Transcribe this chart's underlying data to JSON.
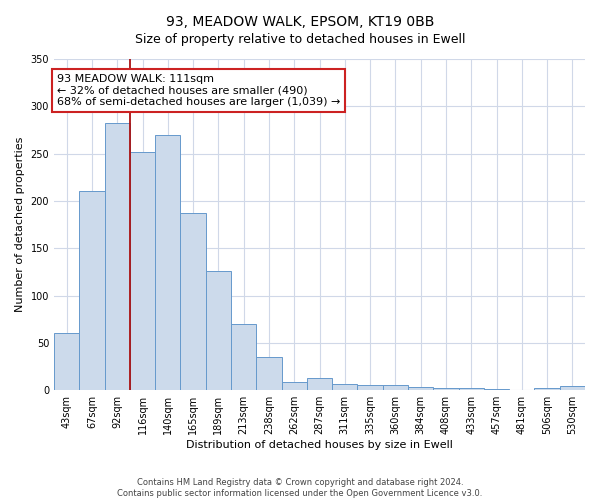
{
  "title": "93, MEADOW WALK, EPSOM, KT19 0BB",
  "subtitle": "Size of property relative to detached houses in Ewell",
  "xlabel": "Distribution of detached houses by size in Ewell",
  "ylabel": "Number of detached properties",
  "bar_labels": [
    "43sqm",
    "67sqm",
    "92sqm",
    "116sqm",
    "140sqm",
    "165sqm",
    "189sqm",
    "213sqm",
    "238sqm",
    "262sqm",
    "287sqm",
    "311sqm",
    "335sqm",
    "360sqm",
    "384sqm",
    "408sqm",
    "433sqm",
    "457sqm",
    "481sqm",
    "506sqm",
    "530sqm"
  ],
  "bar_values": [
    60,
    210,
    282,
    252,
    270,
    187,
    126,
    70,
    35,
    9,
    13,
    7,
    6,
    5,
    3,
    2,
    2,
    1,
    0,
    2,
    4
  ],
  "bar_color": "#ccdaeb",
  "bar_edge_color": "#6699cc",
  "vline_x_index": 3,
  "vline_color": "#aa1111",
  "annotation_title": "93 MEADOW WALK: 111sqm",
  "annotation_line1": "← 32% of detached houses are smaller (490)",
  "annotation_line2": "68% of semi-detached houses are larger (1,039) →",
  "annotation_box_facecolor": "#ffffff",
  "annotation_box_edgecolor": "#cc2222",
  "ylim": [
    0,
    350
  ],
  "yticks": [
    0,
    50,
    100,
    150,
    200,
    250,
    300,
    350
  ],
  "footer1": "Contains HM Land Registry data © Crown copyright and database right 2024.",
  "footer2": "Contains public sector information licensed under the Open Government Licence v3.0.",
  "fig_facecolor": "#ffffff",
  "plot_facecolor": "#ffffff",
  "grid_color": "#d0d8e8",
  "title_fontsize": 10,
  "subtitle_fontsize": 9,
  "axis_label_fontsize": 8,
  "tick_fontsize": 7,
  "annotation_fontsize": 8,
  "footer_fontsize": 6
}
